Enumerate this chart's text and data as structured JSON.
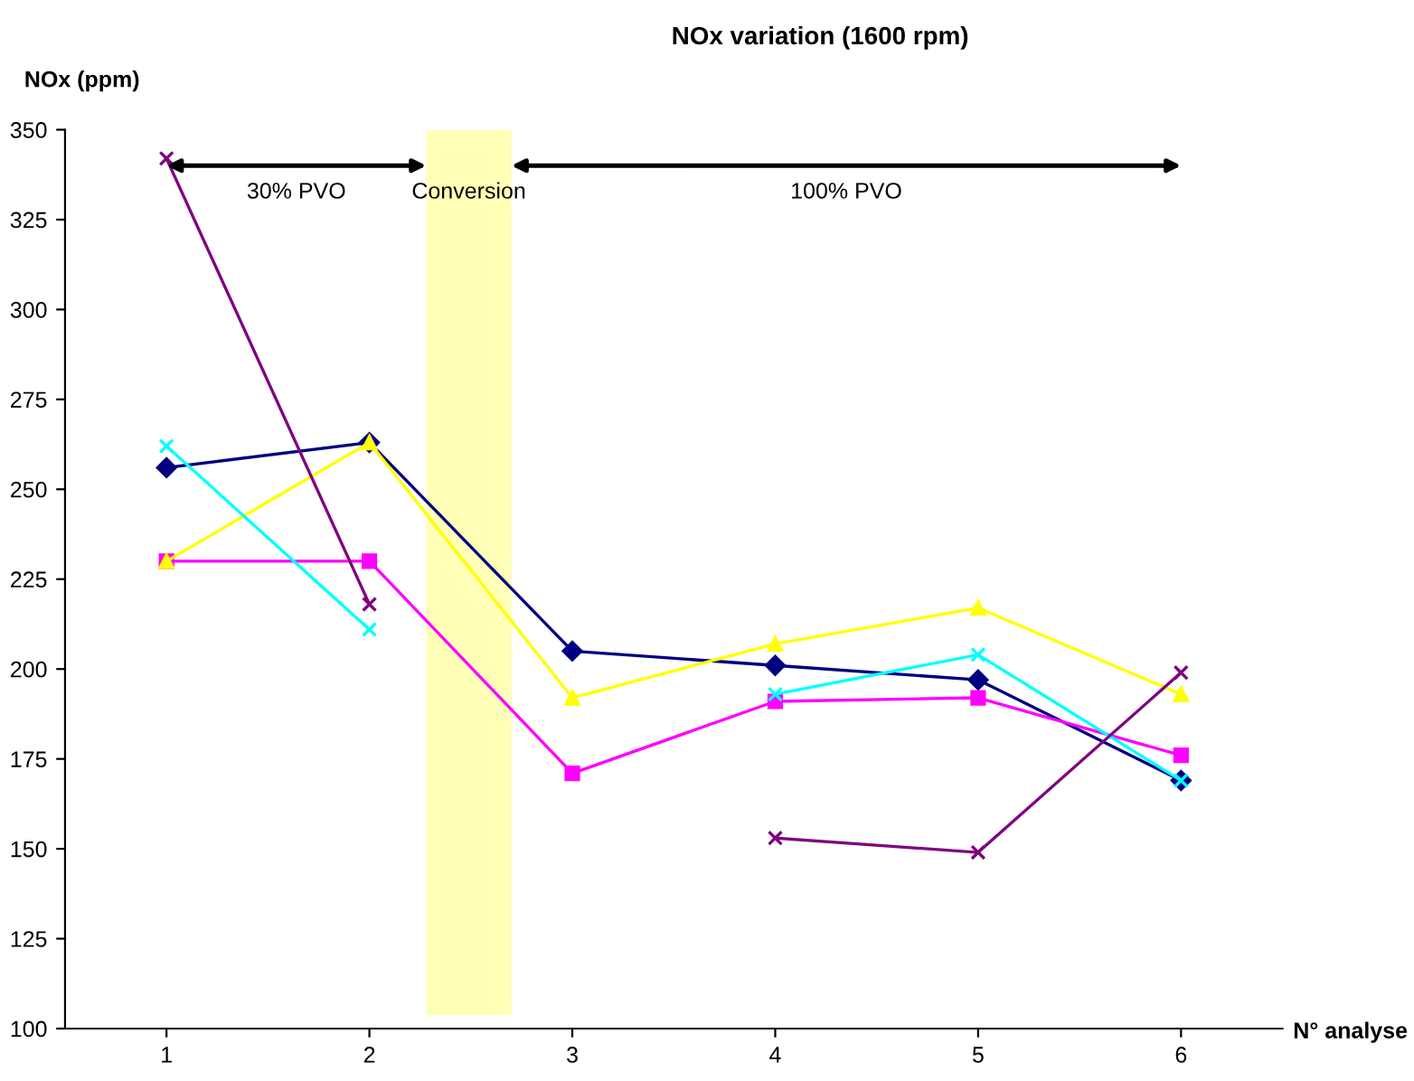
{
  "chart_data": {
    "type": "line",
    "title": "NOx variation (1600 rpm)",
    "xlabel": "N° analyse",
    "ylabel": "NOx (ppm)",
    "x": [
      1,
      2,
      3,
      4,
      5,
      6
    ],
    "xlim": [
      0.5,
      6.5
    ],
    "xticks": [
      1,
      2,
      3,
      4,
      5,
      6
    ],
    "ylim": [
      100,
      350
    ],
    "yticks": [
      100,
      125,
      150,
      175,
      200,
      225,
      250,
      275,
      300,
      325,
      350
    ],
    "grid": false,
    "series": [
      {
        "color": "#000080",
        "marker": "diamond",
        "values": [
          256,
          263,
          205,
          201,
          197,
          169
        ]
      },
      {
        "color": "#ff00ff",
        "marker": "square",
        "values": [
          230,
          230,
          171,
          191,
          192,
          176
        ]
      },
      {
        "color": "#ffff00",
        "marker": "triangle",
        "values": [
          230,
          263,
          192,
          207,
          217,
          193
        ]
      },
      {
        "color": "#00ffff",
        "marker": "cross",
        "values": [
          262,
          211,
          null,
          193,
          204,
          169
        ]
      },
      {
        "color": "#800080",
        "marker": "cross",
        "values": [
          342,
          218,
          null,
          153,
          149,
          199
        ]
      }
    ],
    "bands": [
      {
        "axis": "x",
        "from": 2.28,
        "to": 2.7,
        "label": "Conversion",
        "color": "#ffff99"
      }
    ],
    "annotations": [
      "30% PVO",
      "100% PVO"
    ]
  }
}
